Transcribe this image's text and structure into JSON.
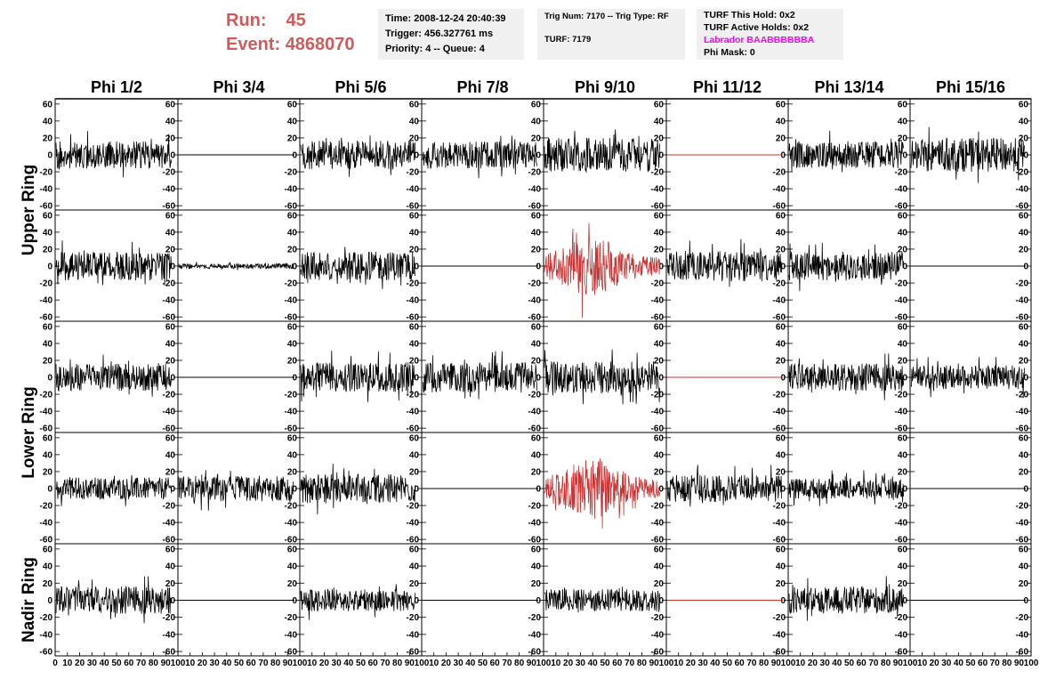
{
  "header": {
    "run_label": "Run:",
    "run_value": "45",
    "event_label": "Event:",
    "event_value": "4868070"
  },
  "info_box_1": {
    "line1": "Time: 2008-12-24 20:40:39",
    "line2": "Trigger: 456.327761 ms",
    "line3": "Priority: 4 -- Queue: 4"
  },
  "info_box_2": {
    "line1": "Trig Num: 7170 -- Trig Type: RF",
    "line2": "TURF: 7179"
  },
  "info_box_3": {
    "line1": "TURF This Hold: 0x2",
    "line2": "TURF Active Holds: 0x2",
    "line3": "Labrador BAABBBBBBA",
    "line4": "Phi Mask: 0",
    "highlight_color": "#ff00ff"
  },
  "chart_data": {
    "type": "line",
    "columns": [
      "Phi 1/2",
      "Phi 3/4",
      "Phi 5/6",
      "Phi 7/8",
      "Phi 9/10",
      "Phi 11/12",
      "Phi 13/14",
      "Phi 15/16"
    ],
    "ring_groups": [
      {
        "name": "Upper Ring",
        "rows": [
          0,
          1
        ]
      },
      {
        "name": "Lower Ring",
        "rows": [
          2,
          3
        ]
      },
      {
        "name": "Nadir Ring",
        "rows": [
          4
        ]
      }
    ],
    "y_ticks": [
      "60",
      "40",
      "20",
      "0",
      "-20",
      "-40",
      "-60"
    ],
    "y_tick_values": [
      60,
      40,
      20,
      0,
      -20,
      -40,
      -60
    ],
    "ylim": [
      -63,
      63
    ],
    "xlim": [
      0,
      100
    ],
    "x_ticks": [
      [
        "0",
        "10",
        "20",
        "30",
        "40",
        "50",
        "60",
        "70",
        "80",
        "90",
        "100"
      ],
      [
        "10",
        "20",
        "30",
        "40",
        "50",
        "60",
        "70",
        "80",
        "90",
        "100"
      ],
      [
        "10",
        "20",
        "30",
        "40",
        "50",
        "60",
        "70",
        "80",
        "90",
        "100"
      ],
      [
        "10",
        "20",
        "30",
        "40",
        "50",
        "60",
        "70",
        "80",
        "90",
        "100"
      ],
      [
        "10",
        "20",
        "30",
        "40",
        "50",
        "60",
        "70",
        "80",
        "90",
        "100"
      ],
      [
        "10",
        "20",
        "30",
        "40",
        "50",
        "60",
        "70",
        "80",
        "90",
        "100"
      ],
      [
        "10",
        "20",
        "30",
        "40",
        "50",
        "60",
        "70",
        "80",
        "90",
        "100"
      ],
      [
        "10",
        "20",
        "30",
        "40",
        "50",
        "60",
        "70",
        "80",
        "90",
        "100"
      ]
    ],
    "x_tick_values": [
      [
        0,
        10,
        20,
        30,
        40,
        50,
        60,
        70,
        80,
        90,
        100
      ],
      [
        10,
        20,
        30,
        40,
        50,
        60,
        70,
        80,
        90,
        100
      ],
      [
        10,
        20,
        30,
        40,
        50,
        60,
        70,
        80,
        90,
        100
      ],
      [
        10,
        20,
        30,
        40,
        50,
        60,
        70,
        80,
        90,
        100
      ],
      [
        10,
        20,
        30,
        40,
        50,
        60,
        70,
        80,
        90,
        100
      ],
      [
        10,
        20,
        30,
        40,
        50,
        60,
        70,
        80,
        90,
        100
      ],
      [
        10,
        20,
        30,
        40,
        50,
        60,
        70,
        80,
        90,
        100
      ],
      [
        10,
        20,
        30,
        40,
        50,
        60,
        70,
        80,
        90,
        100
      ]
    ],
    "normal_color": "#000000",
    "alert_color": "#cd3333",
    "panels": [
      {
        "row": 0,
        "col": 0,
        "kind": "noise",
        "amplitude": 16,
        "color": "#000000",
        "seed": 11
      },
      {
        "row": 0,
        "col": 1,
        "kind": "flat",
        "amplitude": 0,
        "color": "#000000",
        "seed": 12
      },
      {
        "row": 0,
        "col": 2,
        "kind": "noise",
        "amplitude": 17,
        "color": "#000000",
        "seed": 13
      },
      {
        "row": 0,
        "col": 3,
        "kind": "noise",
        "amplitude": 16,
        "color": "#000000",
        "seed": 14
      },
      {
        "row": 0,
        "col": 4,
        "kind": "noise",
        "amplitude": 20,
        "color": "#000000",
        "seed": 15
      },
      {
        "row": 0,
        "col": 5,
        "kind": "flat",
        "amplitude": 0,
        "color": "#cd3333",
        "seed": 16
      },
      {
        "row": 0,
        "col": 6,
        "kind": "noise",
        "amplitude": 16,
        "color": "#000000",
        "seed": 17
      },
      {
        "row": 0,
        "col": 7,
        "kind": "noise",
        "amplitude": 20,
        "color": "#000000",
        "seed": 18
      },
      {
        "row": 1,
        "col": 0,
        "kind": "noise",
        "amplitude": 17,
        "color": "#000000",
        "seed": 21
      },
      {
        "row": 1,
        "col": 1,
        "kind": "noise",
        "amplitude": 3,
        "color": "#000000",
        "seed": 22
      },
      {
        "row": 1,
        "col": 2,
        "kind": "noise",
        "amplitude": 17,
        "color": "#000000",
        "seed": 23
      },
      {
        "row": 1,
        "col": 3,
        "kind": "flat",
        "amplitude": 0,
        "color": "#000000",
        "seed": 24
      },
      {
        "row": 1,
        "col": 4,
        "kind": "burst",
        "amplitude": 30,
        "color": "#cd3333",
        "seed": 25
      },
      {
        "row": 1,
        "col": 5,
        "kind": "noise",
        "amplitude": 18,
        "color": "#000000",
        "seed": 26
      },
      {
        "row": 1,
        "col": 6,
        "kind": "noise",
        "amplitude": 17,
        "color": "#000000",
        "seed": 27
      },
      {
        "row": 1,
        "col": 7,
        "kind": "flat",
        "amplitude": 0,
        "color": "#000000",
        "seed": 28
      },
      {
        "row": 2,
        "col": 0,
        "kind": "noise",
        "amplitude": 16,
        "color": "#000000",
        "seed": 31
      },
      {
        "row": 2,
        "col": 1,
        "kind": "flat",
        "amplitude": 0,
        "color": "#000000",
        "seed": 32
      },
      {
        "row": 2,
        "col": 2,
        "kind": "noise",
        "amplitude": 18,
        "color": "#000000",
        "seed": 33
      },
      {
        "row": 2,
        "col": 3,
        "kind": "noise",
        "amplitude": 18,
        "color": "#000000",
        "seed": 34
      },
      {
        "row": 2,
        "col": 4,
        "kind": "noise",
        "amplitude": 19,
        "color": "#000000",
        "seed": 35
      },
      {
        "row": 2,
        "col": 5,
        "kind": "flat",
        "amplitude": 0,
        "color": "#cd3333",
        "seed": 36
      },
      {
        "row": 2,
        "col": 6,
        "kind": "noise",
        "amplitude": 16,
        "color": "#000000",
        "seed": 37
      },
      {
        "row": 2,
        "col": 7,
        "kind": "noise",
        "amplitude": 14,
        "color": "#000000",
        "seed": 38
      },
      {
        "row": 3,
        "col": 0,
        "kind": "noise",
        "amplitude": 13,
        "color": "#000000",
        "seed": 41
      },
      {
        "row": 3,
        "col": 1,
        "kind": "noise",
        "amplitude": 15,
        "color": "#000000",
        "seed": 42
      },
      {
        "row": 3,
        "col": 2,
        "kind": "noise",
        "amplitude": 17,
        "color": "#000000",
        "seed": 43
      },
      {
        "row": 3,
        "col": 3,
        "kind": "flat",
        "amplitude": 0,
        "color": "#000000",
        "seed": 44
      },
      {
        "row": 3,
        "col": 4,
        "kind": "burst",
        "amplitude": 30,
        "color": "#cd3333",
        "seed": 45
      },
      {
        "row": 3,
        "col": 5,
        "kind": "noise",
        "amplitude": 16,
        "color": "#000000",
        "seed": 46
      },
      {
        "row": 3,
        "col": 6,
        "kind": "noise",
        "amplitude": 12,
        "color": "#000000",
        "seed": 47
      },
      {
        "row": 3,
        "col": 7,
        "kind": "flat",
        "amplitude": 0,
        "color": "#000000",
        "seed": 48
      },
      {
        "row": 4,
        "col": 0,
        "kind": "noise",
        "amplitude": 16,
        "color": "#000000",
        "seed": 51
      },
      {
        "row": 4,
        "col": 1,
        "kind": "flat",
        "amplitude": 0,
        "color": "#000000",
        "seed": 52
      },
      {
        "row": 4,
        "col": 2,
        "kind": "noise",
        "amplitude": 13,
        "color": "#000000",
        "seed": 53
      },
      {
        "row": 4,
        "col": 3,
        "kind": "flat",
        "amplitude": 0,
        "color": "#000000",
        "seed": 54
      },
      {
        "row": 4,
        "col": 4,
        "kind": "noise",
        "amplitude": 13,
        "color": "#000000",
        "seed": 55
      },
      {
        "row": 4,
        "col": 5,
        "kind": "flat",
        "amplitude": 0,
        "color": "#cd3333",
        "seed": 56
      },
      {
        "row": 4,
        "col": 6,
        "kind": "noise",
        "amplitude": 16,
        "color": "#000000",
        "seed": 57
      },
      {
        "row": 4,
        "col": 7,
        "kind": "flat",
        "amplitude": 0,
        "color": "#000000",
        "seed": 58
      }
    ]
  }
}
